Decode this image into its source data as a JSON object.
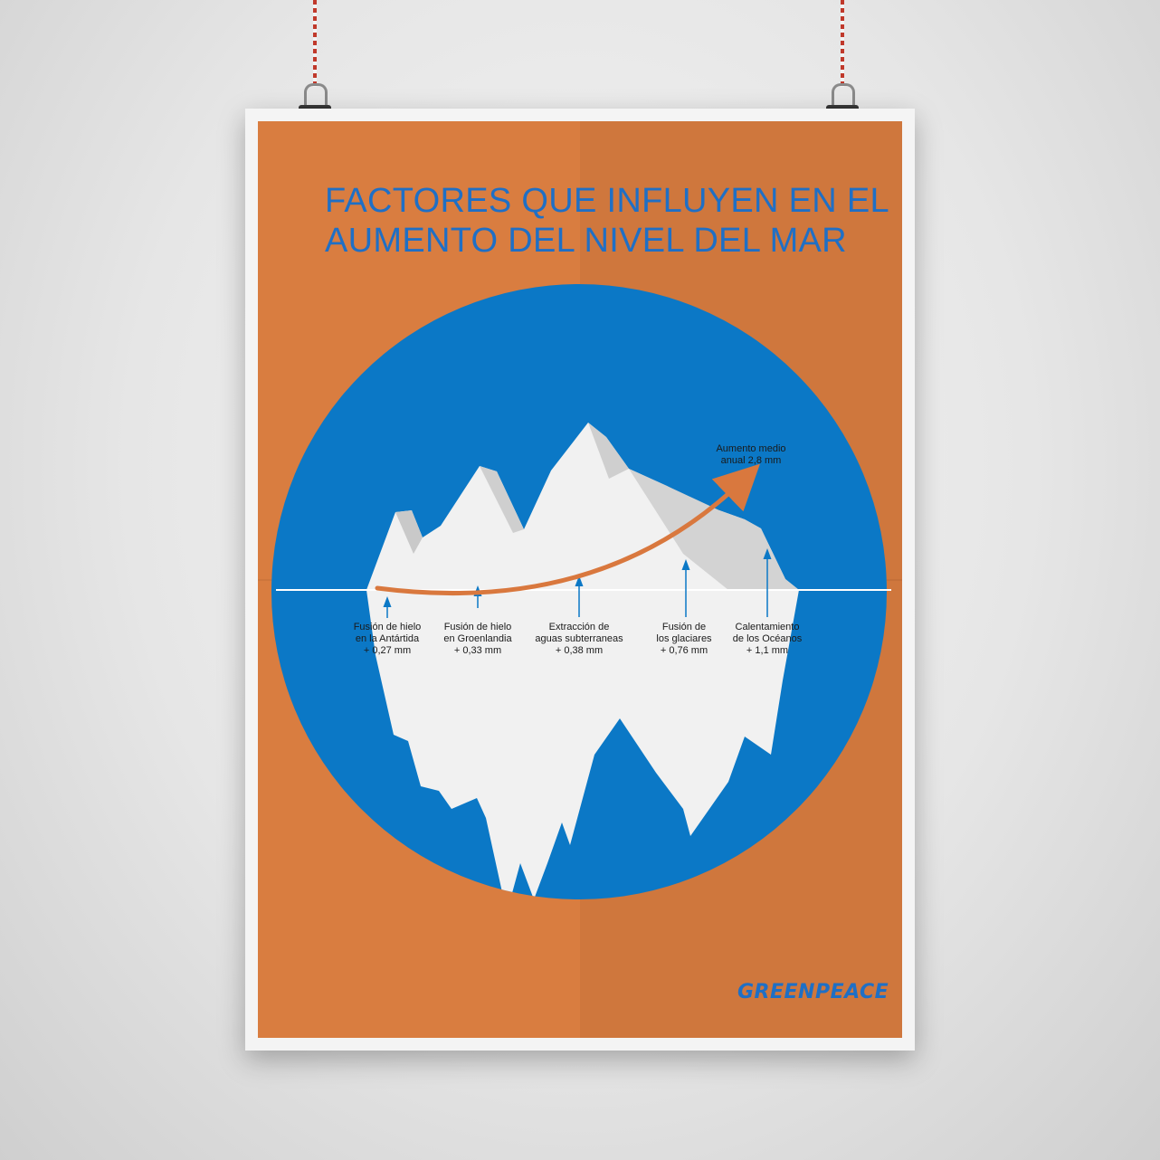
{
  "poster": {
    "title_line1": "FACTORES QUE INFLUYEN EN EL",
    "title_line2": "AUMENTO DEL NIVEL DEL MAR",
    "total": {
      "line1": "Aumento medio",
      "line2": "anual 2,8 mm"
    },
    "factors": [
      {
        "line1": "Fusión de hielo",
        "line2": "en la Antártida",
        "value": "+ 0,27 mm"
      },
      {
        "line1": "Fusión de hielo",
        "line2": "en Groenlandia",
        "value": "+ 0,33 mm"
      },
      {
        "line1": "Extracción de",
        "line2": "aguas subterraneas",
        "value": "+ 0,38 mm"
      },
      {
        "line1": "Fusión de",
        "line2": "los glaciares",
        "value": "+ 0,76 mm"
      },
      {
        "line1": "Calentamiento",
        "line2": "de los Océanos",
        "value": "+ 1,1 mm"
      }
    ],
    "logo": "GREENPEACE",
    "colors": {
      "background": "#d97d40",
      "ocean": "#0b78c6",
      "title": "#1f6fc5",
      "iceberg": "#f1f1f1",
      "trend_arrow": "#d9783e"
    }
  }
}
